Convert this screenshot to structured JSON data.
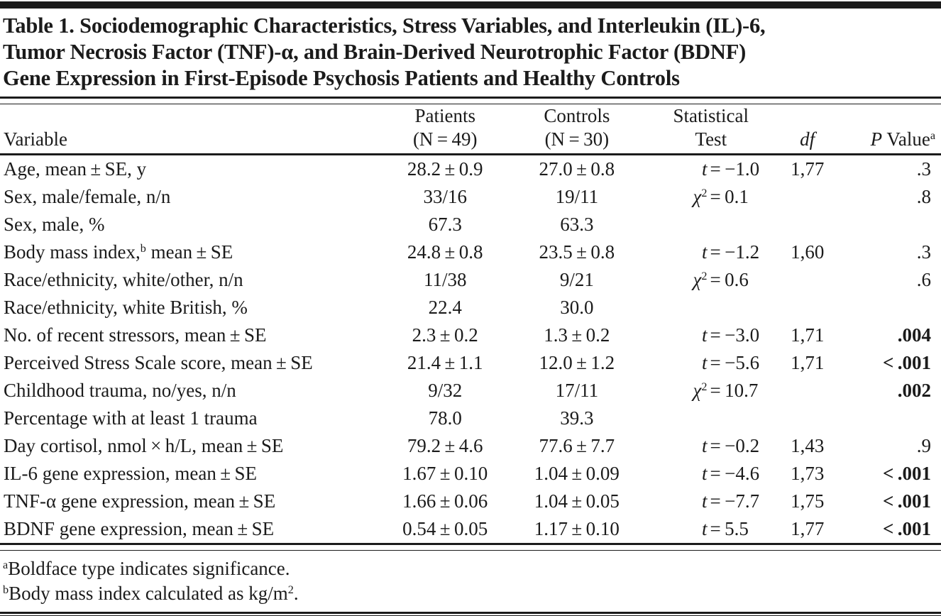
{
  "colors": {
    "text": "#1b1b1b",
    "background": "#ffffff"
  },
  "title": {
    "lines": [
      "Table 1. Sociodemographic Characteristics, Stress Variables, and Interleukin (IL)-6,",
      "Tumor Necrosis Factor (TNF)-α, and Brain-Derived Neurotrophic Factor (BDNF)",
      "Gene Expression in First-Episode Psychosis Patients and Healthy Controls"
    ]
  },
  "table": {
    "headers": {
      "variable": "Variable",
      "patients_line1": "Patients",
      "patients_line2": "(N = 49)",
      "controls_line1": "Controls",
      "controls_line2": "(N = 30)",
      "stat_line1": "Statistical",
      "stat_line2": "Test",
      "df": "df",
      "p_italic": "P",
      "p_rest": " Value",
      "p_sup": "a"
    },
    "rows": [
      {
        "var": [
          {
            "t": "Age, mean ± SE, y"
          }
        ],
        "patients": "28.2 ± 0.9",
        "controls": "27.0 ± 0.8",
        "test_sym": [
          {
            "t": "t",
            "i": true
          }
        ],
        "test_val": "= −1.0",
        "df": "1,77",
        "p": ".3",
        "p_bold": false
      },
      {
        "var": [
          {
            "t": "Sex, male/female, n/n"
          }
        ],
        "patients": "33/16",
        "controls": "19/11",
        "test_sym": [
          {
            "t": "χ",
            "i": true
          },
          {
            "t": "2",
            "sup": true
          }
        ],
        "test_val": "= 0.1",
        "df": "",
        "p": ".8",
        "p_bold": false
      },
      {
        "var": [
          {
            "t": "Sex, male, %"
          }
        ],
        "patients": "67.3",
        "controls": "63.3",
        "test_sym": [],
        "test_val": "",
        "df": "",
        "p": "",
        "p_bold": false
      },
      {
        "var": [
          {
            "t": "Body mass index,"
          },
          {
            "t": "b",
            "sup": true
          },
          {
            "t": " mean ± SE"
          }
        ],
        "patients": "24.8 ± 0.8",
        "controls": "23.5 ± 0.8",
        "test_sym": [
          {
            "t": "t",
            "i": true
          }
        ],
        "test_val": "= −1.2",
        "df": "1,60",
        "p": ".3",
        "p_bold": false
      },
      {
        "var": [
          {
            "t": "Race/ethnicity, white/other, n/n"
          }
        ],
        "patients": "11/38",
        "controls": "9/21",
        "test_sym": [
          {
            "t": "χ",
            "i": true
          },
          {
            "t": "2",
            "sup": true
          }
        ],
        "test_val": "= 0.6",
        "df": "",
        "p": ".6",
        "p_bold": false
      },
      {
        "var": [
          {
            "t": "Race/ethnicity, white British, %"
          }
        ],
        "patients": "22.4",
        "controls": "30.0",
        "test_sym": [],
        "test_val": "",
        "df": "",
        "p": "",
        "p_bold": false
      },
      {
        "var": [
          {
            "t": "No. of recent stressors, mean ± SE"
          }
        ],
        "patients": "2.3 ± 0.2",
        "controls": "1.3 ± 0.2",
        "test_sym": [
          {
            "t": "t",
            "i": true
          }
        ],
        "test_val": "= −3.0",
        "df": "1,71",
        "p": ".004",
        "p_bold": true
      },
      {
        "var": [
          {
            "t": "Perceived Stress Scale score, mean ± SE"
          }
        ],
        "patients": "21.4 ± 1.1",
        "controls": "12.0 ± 1.2",
        "test_sym": [
          {
            "t": "t",
            "i": true
          }
        ],
        "test_val": "= −5.6",
        "df": "1,71",
        "p": "< .001",
        "p_bold": true
      },
      {
        "var": [
          {
            "t": "Childhood trauma, no/yes, n/n"
          }
        ],
        "patients": "9/32",
        "controls": "17/11",
        "test_sym": [
          {
            "t": "χ",
            "i": true
          },
          {
            "t": "2",
            "sup": true
          }
        ],
        "test_val": "= 10.7",
        "df": "",
        "p": ".002",
        "p_bold": true
      },
      {
        "var": [
          {
            "t": "Percentage with at least 1 trauma"
          }
        ],
        "patients": "78.0",
        "controls": "39.3",
        "test_sym": [],
        "test_val": "",
        "df": "",
        "p": "",
        "p_bold": false
      },
      {
        "var": [
          {
            "t": "Day cortisol, nmol × h/L, mean ± SE"
          }
        ],
        "patients": "79.2 ± 4.6",
        "controls": "77.6 ± 7.7",
        "test_sym": [
          {
            "t": "t",
            "i": true
          }
        ],
        "test_val": "= −0.2",
        "df": "1,43",
        "p": ".9",
        "p_bold": false
      },
      {
        "var": [
          {
            "t": "IL-6 gene expression, mean ± SE"
          }
        ],
        "patients": "1.67 ± 0.10",
        "controls": "1.04 ± 0.09",
        "test_sym": [
          {
            "t": "t",
            "i": true
          }
        ],
        "test_val": "= −4.6",
        "df": "1,73",
        "p": "< .001",
        "p_bold": true
      },
      {
        "var": [
          {
            "t": "TNF-α gene expression, mean ± SE"
          }
        ],
        "patients": "1.66 ± 0.06",
        "controls": "1.04 ± 0.05",
        "test_sym": [
          {
            "t": "t",
            "i": true
          }
        ],
        "test_val": "= −7.7",
        "df": "1,75",
        "p": "< .001",
        "p_bold": true
      },
      {
        "var": [
          {
            "t": "BDNF gene expression, mean ± SE"
          }
        ],
        "patients": "0.54 ± 0.05",
        "controls": "1.17 ± 0.10",
        "test_sym": [
          {
            "t": "t",
            "i": true
          }
        ],
        "test_val": "= 5.5",
        "df": "1,77",
        "p": "< .001",
        "p_bold": true
      }
    ]
  },
  "footnotes": {
    "a_sup": "a",
    "a_text": "Boldface type indicates significance.",
    "b_sup": "b",
    "b_text": "Body mass index calculated as kg/m",
    "b_text_sup": "2",
    "b_period": "."
  }
}
